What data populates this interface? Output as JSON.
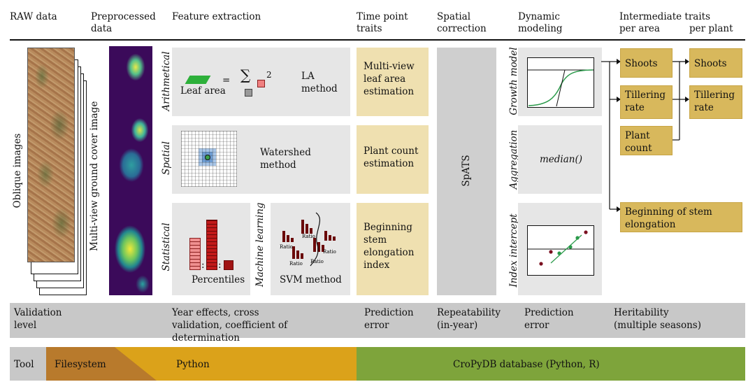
{
  "headers": {
    "raw": "RAW data",
    "preprocessed": "Preprocessed data",
    "feature": "Feature extraction",
    "timepoint": "Time point traits",
    "spatial": "Spatial correction",
    "dynamic": "Dynamic modeling",
    "intermediate": "Intermediate traits",
    "per_area": "per area",
    "per_plant": "per plant"
  },
  "raw": {
    "label": "Oblique images"
  },
  "preprocessed": {
    "label": "Multi-view ground cover image"
  },
  "feature": {
    "arithmetical": {
      "label": "Arithmetical",
      "leaf_area": "Leaf area",
      "eq": "=",
      "sum": "∑",
      "exp": "2",
      "method": "LA method"
    },
    "spatial": {
      "label": "Spatial",
      "method": "Watershed method"
    },
    "statistical": {
      "label": "Statistical",
      "method": "Percentiles",
      "colon": ":"
    },
    "ml": {
      "label": "Machine learning",
      "method": "SVM method",
      "ratio": "Ratio"
    }
  },
  "timepoint": {
    "items": [
      "Multi-view leaf area estimation",
      "Plant count estimation",
      "Beginning stem elongation index"
    ]
  },
  "spatial": {
    "label": "SpATS"
  },
  "dynamic": {
    "growth": "Growth model",
    "aggregation": "Aggregation",
    "median": "median()",
    "index": "Index intercept"
  },
  "intermediate": {
    "area": [
      "Shoots",
      "Tillering rate",
      "Plant count",
      "Beginning of stem elongation"
    ],
    "plant": [
      "Shoots",
      "Tillering rate"
    ]
  },
  "validation": {
    "level": "Validation level",
    "feature": "Year effects, cross validation, coefficient of determination",
    "timepoint": "Prediction error",
    "spatial": "Repeatability (in-year)",
    "dynamic": "Prediction error",
    "intermediate": "Heritability (multiple seasons)"
  },
  "tool": {
    "label": "Tool",
    "filesystem": "Filesystem",
    "python": "Python",
    "db": "CroPyDB database (Python, R)"
  },
  "colors": {
    "tan": "#efe0b0",
    "gold": "#d8b85c",
    "panel": "#e6e6e6",
    "gray": "#c8c8c8",
    "green": "#7ea43b",
    "orange": "#dba21a",
    "brown": "#b87a2c"
  }
}
